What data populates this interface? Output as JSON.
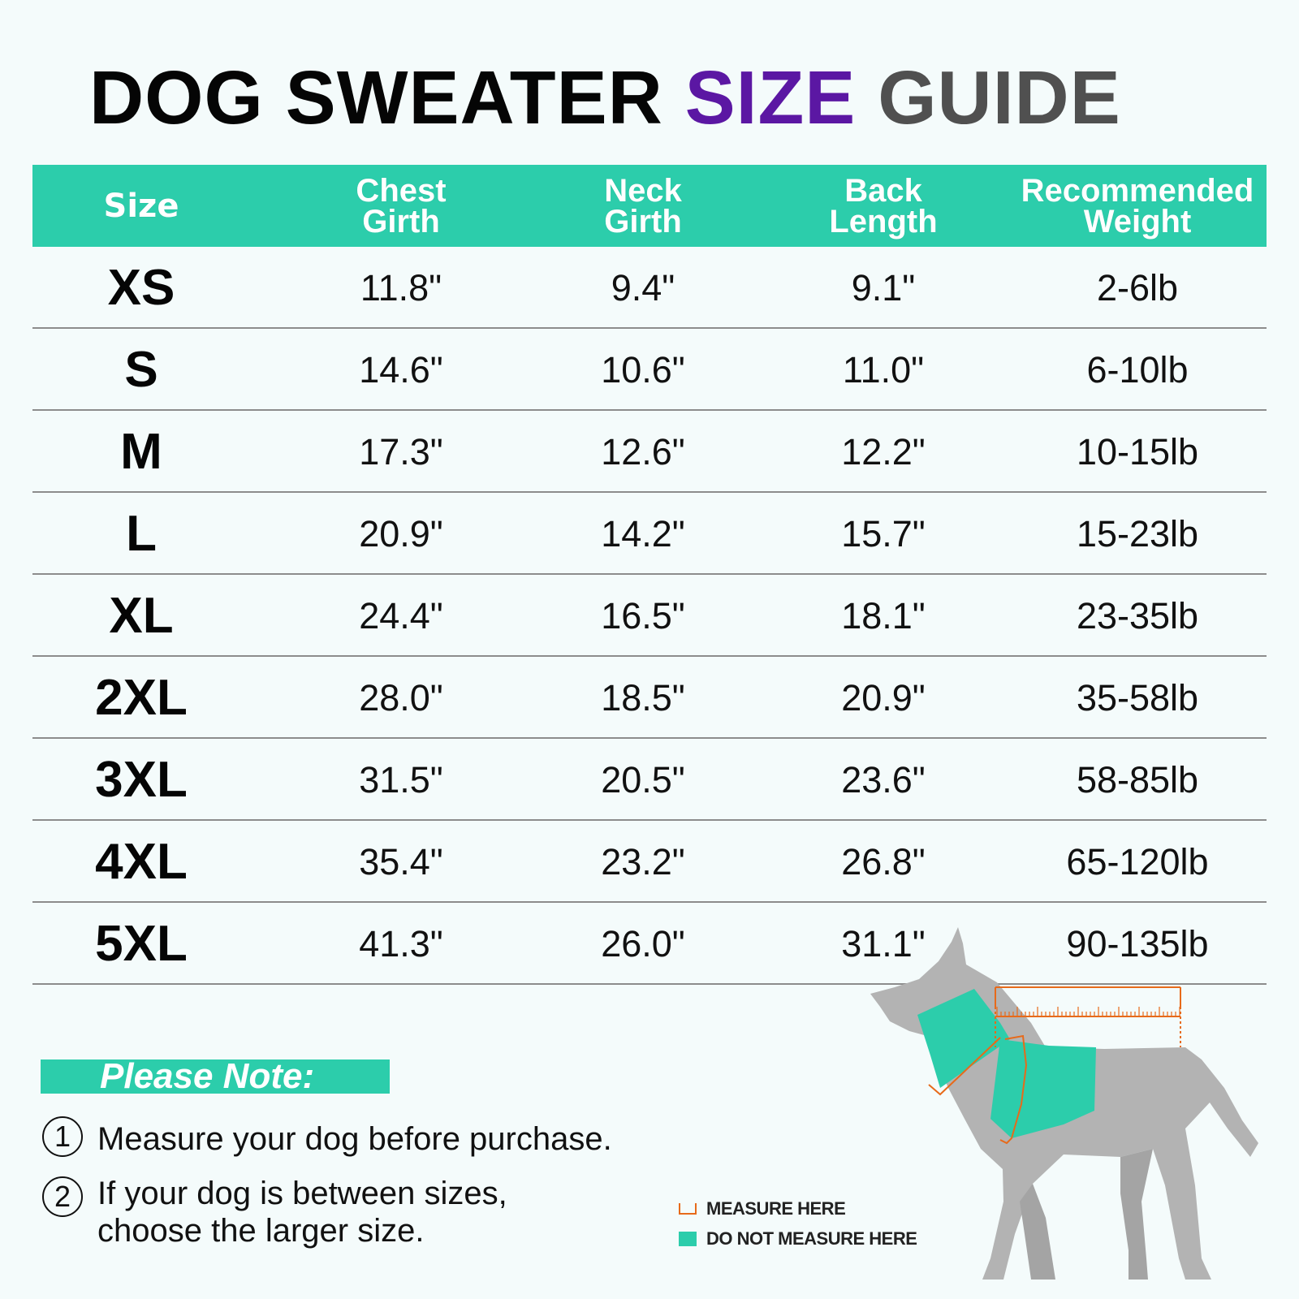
{
  "title": {
    "word1": "DOG SWEATER",
    "word2": "SIZE",
    "word3": "GUIDE"
  },
  "colors": {
    "accent_teal": "#2ccdab",
    "title_purple": "#5b17a3",
    "title_gray": "#505050",
    "measure_orange": "#e76a1a",
    "dog_gray": "#b3b3b3"
  },
  "table": {
    "headers": {
      "size": "Size",
      "chest": [
        "Chest",
        "Girth"
      ],
      "neck": [
        "Neck",
        "Girth"
      ],
      "back": [
        "Back",
        "Length"
      ],
      "weight": [
        "Recommended",
        "Weight"
      ]
    },
    "rows": [
      {
        "size": "XS",
        "chest": "11.8\"",
        "neck": "9.4\"",
        "back": "9.1\"",
        "weight": "2-6lb"
      },
      {
        "size": "S",
        "chest": "14.6\"",
        "neck": "10.6\"",
        "back": "11.0\"",
        "weight": "6-10lb"
      },
      {
        "size": "M",
        "chest": "17.3\"",
        "neck": "12.6\"",
        "back": "12.2\"",
        "weight": "10-15lb"
      },
      {
        "size": "L",
        "chest": "20.9\"",
        "neck": "14.2\"",
        "back": "15.7\"",
        "weight": "15-23lb"
      },
      {
        "size": "XL",
        "chest": "24.4\"",
        "neck": "16.5\"",
        "back": "18.1\"",
        "weight": "23-35lb"
      },
      {
        "size": "2XL",
        "chest": "28.0\"",
        "neck": "18.5\"",
        "back": "20.9\"",
        "weight": "35-58lb"
      },
      {
        "size": "3XL",
        "chest": "31.5\"",
        "neck": "20.5\"",
        "back": "23.6\"",
        "weight": "58-85lb"
      },
      {
        "size": "4XL",
        "chest": "35.4\"",
        "neck": "23.2\"",
        "back": "26.8\"",
        "weight": "65-120lb"
      },
      {
        "size": "5XL",
        "chest": "41.3\"",
        "neck": "26.0\"",
        "back": "31.1\"",
        "weight": "90-135lb"
      }
    ]
  },
  "note": {
    "title": "Please Note:",
    "items": [
      {
        "num": "1",
        "lines": [
          "Measure your dog before purchase."
        ]
      },
      {
        "num": "2",
        "lines": [
          "If your dog is between sizes,",
          "choose the larger size."
        ]
      }
    ]
  },
  "legend": {
    "measure": "MEASURE HERE",
    "do_not": "DO NOT MEASURE HERE"
  },
  "illustration": {
    "icon": "dog-silhouette-icon"
  }
}
